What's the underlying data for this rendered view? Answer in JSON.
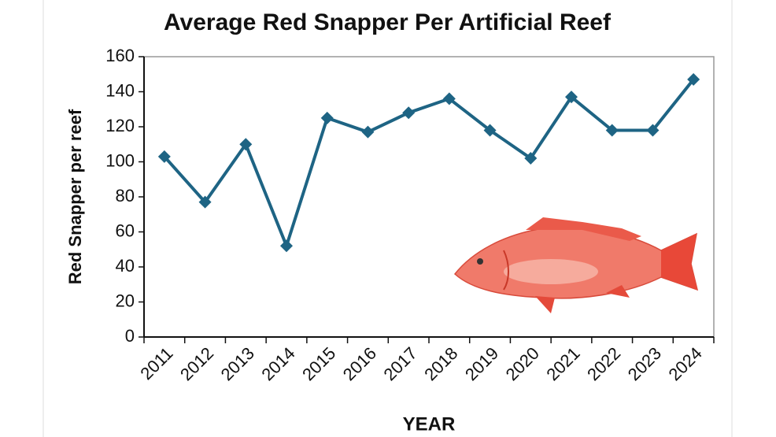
{
  "chart_data": {
    "type": "line",
    "title": "Average Red Snapper Per Artificial Reef",
    "x_label": "YEAR",
    "y_label": "Red Snapper per reef",
    "categories": [
      "2011",
      "2012",
      "2013",
      "2014",
      "2015",
      "2016",
      "2017",
      "2018",
      "2019",
      "2020",
      "2021",
      "2022",
      "2023",
      "2024"
    ],
    "series": [
      {
        "name": "Red Snapper per reef",
        "color": "#1e6484",
        "values": [
          103,
          77,
          110,
          52,
          125,
          117,
          128,
          136,
          118,
          102,
          137,
          118,
          118,
          147
        ]
      }
    ],
    "ylim": [
      0,
      160
    ],
    "yticks": [
      0,
      20,
      40,
      60,
      80,
      100,
      120,
      140,
      160
    ],
    "grid": false
  }
}
